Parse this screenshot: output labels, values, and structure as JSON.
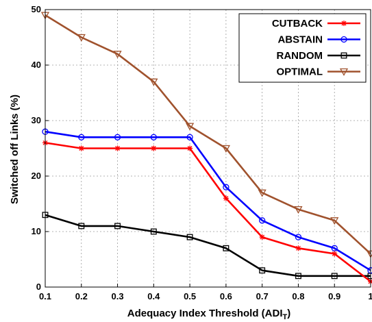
{
  "chart_data": {
    "type": "line",
    "title": "",
    "xlabel": "Adequacy Index Threshold (ADI",
    "xlabel_sub": "T",
    "xlabel_close": ")",
    "ylabel": "Switched off Links (%)",
    "xlim": [
      0.1,
      1.0
    ],
    "ylim": [
      0,
      50
    ],
    "x_ticks": [
      "0.1",
      "0.2",
      "0.3",
      "0.4",
      "0.5",
      "0.6",
      "0.7",
      "0.8",
      "0.9",
      "1"
    ],
    "y_ticks": [
      "0",
      "10",
      "20",
      "30",
      "40",
      "50"
    ],
    "grid": true,
    "legend_position": "top-right",
    "x": [
      0.1,
      0.2,
      0.3,
      0.4,
      0.5,
      0.6,
      0.7,
      0.8,
      0.9,
      1.0
    ],
    "series": [
      {
        "name": "CUTBACK",
        "color": "#ff0000",
        "marker": "asterisk",
        "values": [
          26,
          25,
          25,
          25,
          25,
          16,
          9,
          7,
          6,
          1
        ]
      },
      {
        "name": "ABSTAIN",
        "color": "#0000ff",
        "marker": "circle",
        "values": [
          28,
          27,
          27,
          27,
          27,
          18,
          12,
          9,
          7,
          3
        ]
      },
      {
        "name": "RANDOM",
        "color": "#000000",
        "marker": "square",
        "values": [
          13,
          11,
          11,
          10,
          9,
          7,
          3,
          2,
          2,
          2
        ]
      },
      {
        "name": "OPTIMAL",
        "color": "#a0522d",
        "marker": "triangle-down",
        "values": [
          49,
          45,
          42,
          37,
          29,
          25,
          17,
          14,
          12,
          6
        ]
      }
    ]
  }
}
